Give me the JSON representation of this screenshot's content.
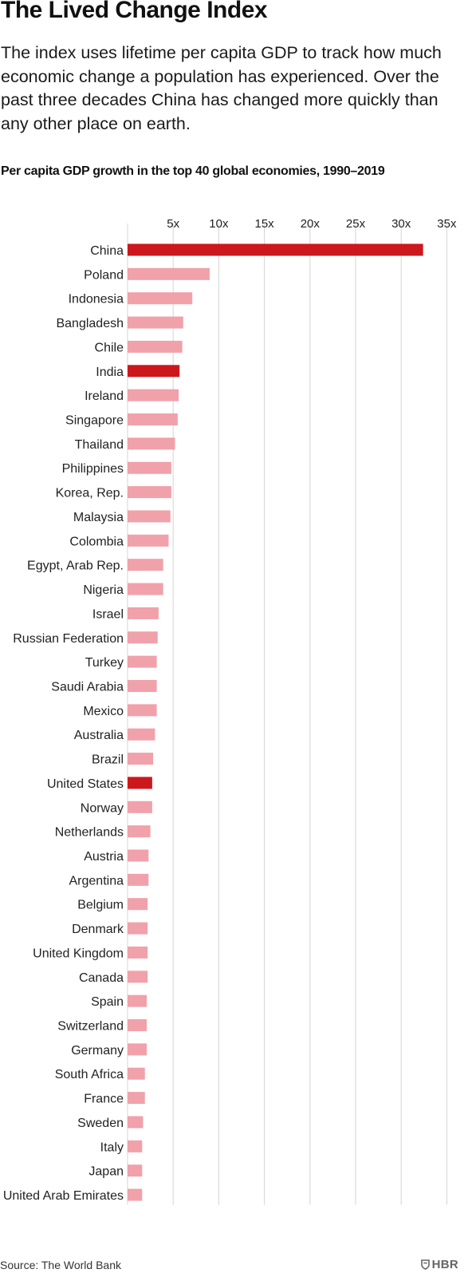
{
  "header": {
    "title": "The Lived Change Index",
    "subtitle": "The index uses lifetime per capita GDP to track how much economic change a population has experienced. Over the past three decades China has changed more quickly than any other place on earth."
  },
  "chart_data": {
    "type": "bar",
    "orientation": "horizontal",
    "title": "Per capita GDP growth in the top 40 global economies, 1990–2019",
    "xlabel": "",
    "ylabel": "",
    "xlim": [
      0,
      35.5
    ],
    "x_ticks": [
      5,
      10,
      15,
      20,
      25,
      30,
      35
    ],
    "x_tick_labels": [
      "5x",
      "10x",
      "15x",
      "20x",
      "25x",
      "30x",
      "35x"
    ],
    "grid": "vertical",
    "categories": [
      "China",
      "Poland",
      "Indonesia",
      "Bangladesh",
      "Chile",
      "India",
      "Ireland",
      "Singapore",
      "Thailand",
      "Philippines",
      "Korea, Rep.",
      "Malaysia",
      "Colombia",
      "Egypt, Arab Rep.",
      "Nigeria",
      "Israel",
      "Russian Federation",
      "Turkey",
      "Saudi Arabia",
      "Mexico",
      "Australia",
      "Brazil",
      "United States",
      "Norway",
      "Netherlands",
      "Austria",
      "Argentina",
      "Belgium",
      "Denmark",
      "United Kingdom",
      "Canada",
      "Spain",
      "Switzerland",
      "Germany",
      "South Africa",
      "France",
      "Sweden",
      "Italy",
      "Japan",
      "United Arab Emirates"
    ],
    "values": [
      32.4,
      9.0,
      7.1,
      6.1,
      6.0,
      5.7,
      5.6,
      5.5,
      5.2,
      4.8,
      4.8,
      4.7,
      4.5,
      3.9,
      3.9,
      3.4,
      3.3,
      3.2,
      3.2,
      3.2,
      3.0,
      2.8,
      2.7,
      2.7,
      2.5,
      2.3,
      2.3,
      2.2,
      2.2,
      2.2,
      2.2,
      2.1,
      2.1,
      2.1,
      1.9,
      1.9,
      1.7,
      1.6,
      1.6,
      1.6
    ],
    "highlighted": [
      "China",
      "India",
      "United States"
    ],
    "colors": {
      "highlight": "#cc171d",
      "default": "#f1a1aa",
      "grid": "#d4d4d4"
    }
  },
  "footer": {
    "source": "Source: The World Bank",
    "logo_text": "HBR",
    "logo_icon": "hbr-shield-icon"
  }
}
